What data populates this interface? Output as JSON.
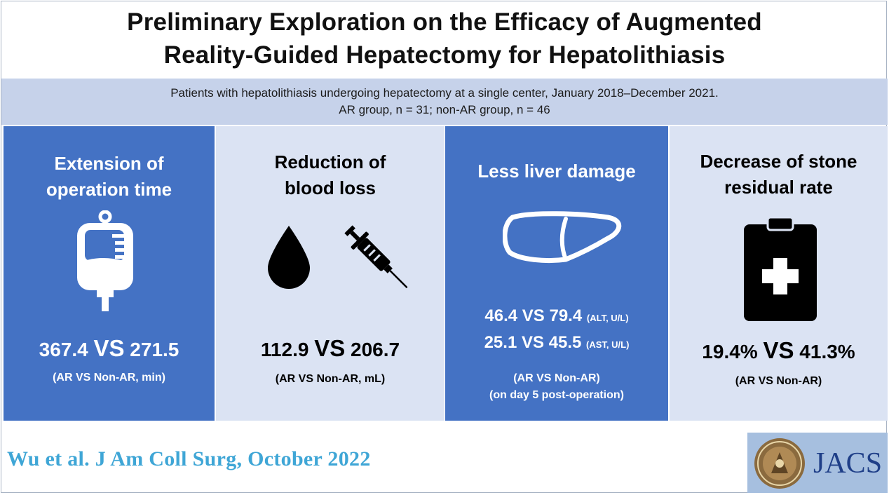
{
  "title": {
    "line1": "Preliminary Exploration on the Efficacy of Augmented",
    "line2": "Reality-Guided Hepatectomy for Hepatolithiasis"
  },
  "subtitle": {
    "line1": "Patients with hepatolithiasis undergoing hepatectomy at a single center, January 2018–December 2021.",
    "line2": "AR group, n = 31; non-AR group, n = 46"
  },
  "panels": [
    {
      "heading1": "Extension of",
      "heading2": "operation time",
      "icon": "iv-bag-icon",
      "value_a": "367.4",
      "vs": "VS",
      "value_b": "271.5",
      "note": "(AR VS Non-AR,  min)",
      "background": "#4472c4"
    },
    {
      "heading1": "Reduction of",
      "heading2": "blood loss",
      "icon": "blood-drop-and-syringe-icon",
      "value_a": "112.9",
      "vs": "VS",
      "value_b": "206.7",
      "note": "(AR VS Non-AR,  mL)",
      "background": "#dbe3f3"
    },
    {
      "heading": "Less liver damage",
      "icon": "liver-icon",
      "row1_value": "46.4 VS 79.4",
      "row1_unit": "(ALT, U/L)",
      "row2_value": "25.1 VS 45.5",
      "row2_unit": "(AST, U/L)",
      "note1": "(AR VS Non-AR)",
      "note2": "(on day 5 post-operation)",
      "background": "#4472c4"
    },
    {
      "heading1": "Decrease of stone",
      "heading2": "residual rate",
      "icon": "medical-clipboard-icon",
      "value_a": "19.4%",
      "vs": "VS",
      "value_b": "41.3%",
      "note": "(AR VS Non-AR)",
      "background": "#dbe3f3"
    }
  ],
  "citation": "Wu et al. J Am Coll Surg, October 2022",
  "journal": {
    "logo_text": "JACS",
    "seal_icon": "acs-seal-icon"
  }
}
